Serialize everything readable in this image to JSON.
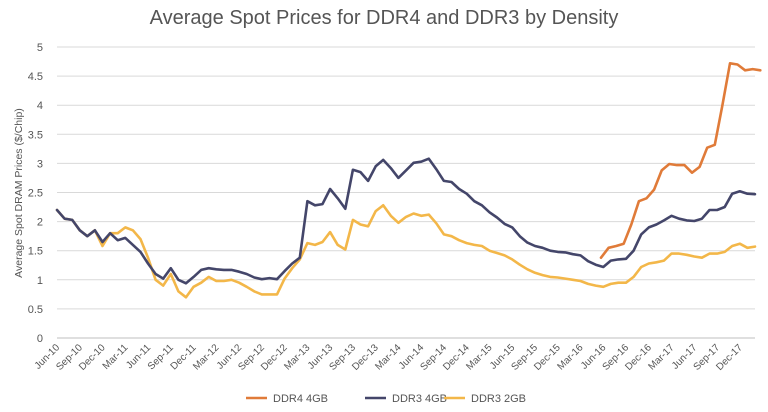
{
  "chart_data": {
    "type": "line",
    "title": "Average Spot Prices for DDR4 and DDR3 by Density",
    "ylabel": "Average Spot DRAM Prices ($/Chip)",
    "xlabel": "",
    "ylim": [
      0,
      5
    ],
    "yticks": [
      "0",
      "0.5",
      "1",
      "1.5",
      "2",
      "2.5",
      "3",
      "3.5",
      "4",
      "4.5",
      "5"
    ],
    "grid": "horizontal",
    "legend_position": "bottom",
    "categories": [
      "Jun-10",
      "Sep-10",
      "Dec-10",
      "Mar-11",
      "Jun-11",
      "Sep-11",
      "Dec-11",
      "Mar-12",
      "Jun-12",
      "Sep-12",
      "Dec-12",
      "Mar-13",
      "Jun-13",
      "Sep-13",
      "Dec-13",
      "Mar-14",
      "Jun-14",
      "Sep-14",
      "Dec-14",
      "Mar-15",
      "Jun-15",
      "Sep-15",
      "Dec-15",
      "Mar-16",
      "Jun-16",
      "Sep-16",
      "Dec-16",
      "Mar-17",
      "Jun-17",
      "Sep-17",
      "Dec-17"
    ],
    "series": [
      {
        "name": "DDR4 4GB",
        "color": "#E07B39",
        "x": [
          71.7,
          72.7,
          73.7,
          74.7,
          75.7,
          76.7,
          77.7,
          78.7,
          79.7,
          80.7,
          81.7,
          82.7,
          83.7,
          84.7,
          85.7,
          86.7,
          87.7,
          88.7,
          89.7,
          90.7,
          91.7,
          92.7
        ],
        "values": [
          1.38,
          1.55,
          1.58,
          1.62,
          1.95,
          2.35,
          2.4,
          2.55,
          2.88,
          2.99,
          2.97,
          2.97,
          2.84,
          2.94,
          3.27,
          3.32,
          4.0,
          4.72,
          4.7,
          4.6,
          4.62,
          4.6
        ]
      },
      {
        "name": "DDR3 4GB",
        "color": "#44466A",
        "x": [
          0,
          1,
          2,
          3,
          4,
          5,
          6,
          7,
          8,
          9,
          10,
          11,
          12,
          13,
          14,
          15,
          16,
          17,
          18,
          19,
          20,
          21,
          22,
          23,
          24,
          25,
          26,
          27,
          28,
          29,
          30,
          31,
          32,
          33,
          34,
          35,
          36,
          37,
          38,
          39,
          40,
          41,
          42,
          43,
          44,
          45,
          46,
          47,
          48,
          49,
          50,
          51,
          52,
          53,
          54,
          55,
          56,
          57,
          58,
          59,
          60,
          61,
          62,
          63,
          64,
          65,
          66,
          67,
          68,
          69,
          70,
          71,
          72,
          73,
          74,
          75,
          76,
          77,
          78,
          79,
          80,
          81,
          82,
          83,
          84,
          85,
          86,
          87,
          88,
          89,
          90,
          91,
          92
        ],
        "values": [
          2.2,
          2.05,
          2.03,
          1.85,
          1.75,
          1.85,
          1.65,
          1.8,
          1.68,
          1.72,
          1.6,
          1.48,
          1.28,
          1.1,
          1.02,
          1.2,
          1.0,
          0.94,
          1.05,
          1.17,
          1.2,
          1.18,
          1.17,
          1.17,
          1.14,
          1.1,
          1.04,
          1.01,
          1.03,
          1.01,
          1.15,
          1.28,
          1.38,
          2.35,
          2.28,
          2.3,
          2.56,
          2.4,
          2.22,
          2.89,
          2.85,
          2.7,
          2.95,
          3.06,
          2.92,
          2.75,
          2.88,
          3.01,
          3.03,
          3.08,
          2.9,
          2.7,
          2.68,
          2.56,
          2.48,
          2.35,
          2.28,
          2.16,
          2.07,
          1.96,
          1.9,
          1.75,
          1.64,
          1.58,
          1.55,
          1.5,
          1.48,
          1.47,
          1.44,
          1.42,
          1.32,
          1.26,
          1.22,
          1.33,
          1.35,
          1.36,
          1.5,
          1.78,
          1.9,
          1.95,
          2.02,
          2.1,
          2.05,
          2.02,
          2.01,
          2.05,
          2.2,
          2.2,
          2.25,
          2.48,
          2.52,
          2.48,
          2.47
        ]
      },
      {
        "name": "DDR3 2GB",
        "color": "#F3B749",
        "x": [
          0,
          1,
          2,
          3,
          4,
          5,
          6,
          7,
          8,
          9,
          10,
          11,
          12,
          13,
          14,
          15,
          16,
          17,
          18,
          19,
          20,
          21,
          22,
          23,
          24,
          25,
          26,
          27,
          28,
          29,
          30,
          31,
          32,
          33,
          34,
          35,
          36,
          37,
          38,
          39,
          40,
          41,
          42,
          43,
          44,
          45,
          46,
          47,
          48,
          49,
          50,
          51,
          52,
          53,
          54,
          55,
          56,
          57,
          58,
          59,
          60,
          61,
          62,
          63,
          64,
          65,
          66,
          67,
          68,
          69,
          70,
          71,
          72,
          73,
          74,
          75,
          76,
          77,
          78,
          79,
          80,
          81,
          82,
          83,
          84,
          85,
          86,
          87,
          88,
          89,
          90,
          91,
          92
        ],
        "values": [
          2.2,
          2.05,
          2.03,
          1.85,
          1.75,
          1.85,
          1.58,
          1.8,
          1.8,
          1.9,
          1.85,
          1.7,
          1.38,
          1.0,
          0.9,
          1.1,
          0.8,
          0.7,
          0.88,
          0.95,
          1.05,
          0.98,
          0.98,
          1.0,
          0.95,
          0.88,
          0.8,
          0.75,
          0.75,
          0.75,
          1.02,
          1.2,
          1.35,
          1.63,
          1.6,
          1.65,
          1.82,
          1.6,
          1.52,
          2.03,
          1.95,
          1.92,
          2.18,
          2.28,
          2.1,
          1.98,
          2.08,
          2.14,
          2.1,
          2.12,
          1.97,
          1.78,
          1.75,
          1.68,
          1.63,
          1.6,
          1.58,
          1.5,
          1.46,
          1.42,
          1.35,
          1.26,
          1.18,
          1.12,
          1.08,
          1.05,
          1.04,
          1.02,
          1.0,
          0.98,
          0.93,
          0.9,
          0.88,
          0.93,
          0.95,
          0.95,
          1.05,
          1.22,
          1.28,
          1.3,
          1.33,
          1.45,
          1.45,
          1.43,
          1.4,
          1.38,
          1.45,
          1.45,
          1.48,
          1.58,
          1.62,
          1.55,
          1.57
        ]
      }
    ]
  }
}
